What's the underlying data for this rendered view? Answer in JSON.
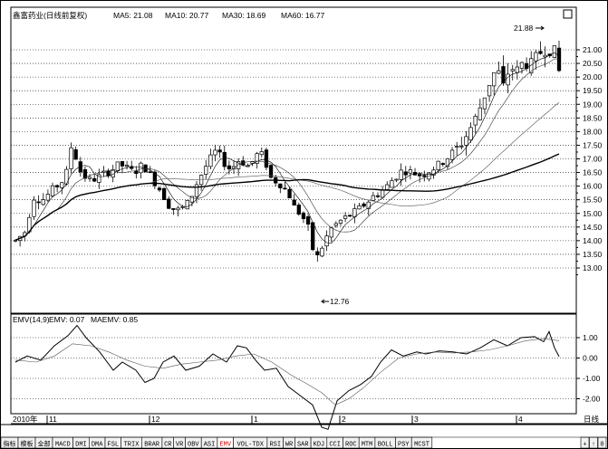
{
  "main_chart": {
    "header": {
      "title": "鑫富药业(日线前复权)",
      "ma5": "MA5: 21.08",
      "ma10": "MA10: 20.77",
      "ma30": "MA30: 18.69",
      "ma60": "MA60: 16.77"
    },
    "corner_button": "□",
    "price_labels": [
      "21.00",
      "20.50",
      "20.00",
      "19.50",
      "19.00",
      "18.50",
      "18.00",
      "17.50",
      "17.00",
      "16.50",
      "16.00",
      "15.50",
      "15.00",
      "14.50",
      "14.00",
      "13.50",
      "13.00"
    ],
    "high_annotation": "21.88",
    "low_annotation": "12.76"
  },
  "emv_panel": {
    "header": {
      "name": "EMV(14,9)",
      "emv": "EMV: 0.07",
      "maemv": "MAEMV: 0.85"
    },
    "labels": [
      "1.00",
      "0.00",
      "-1.00",
      "-2.00"
    ]
  },
  "date_axis": {
    "year": "2010年",
    "marks": [
      "11",
      "12",
      "1",
      "2",
      "3",
      "4"
    ],
    "right": "日线"
  },
  "tabs": {
    "items": [
      "指标",
      "模板",
      "全部",
      "MACD",
      "DMI",
      "DMA",
      "FSL",
      "TRIX",
      "BRAR",
      "CR",
      "VR",
      "OBV",
      "ASI",
      "EMV",
      "VOL-TDX",
      "RSI",
      "WR",
      "SAR",
      "KDJ",
      "CCI",
      "ROC",
      "MTM",
      "BOLL",
      "PSY",
      "MCST"
    ],
    "active": "EMV",
    "controls": [
      "+",
      "↑",
      "0"
    ]
  },
  "colors": {
    "up": "#000000",
    "down": "#000000",
    "active_tab": "#cc0000"
  }
}
